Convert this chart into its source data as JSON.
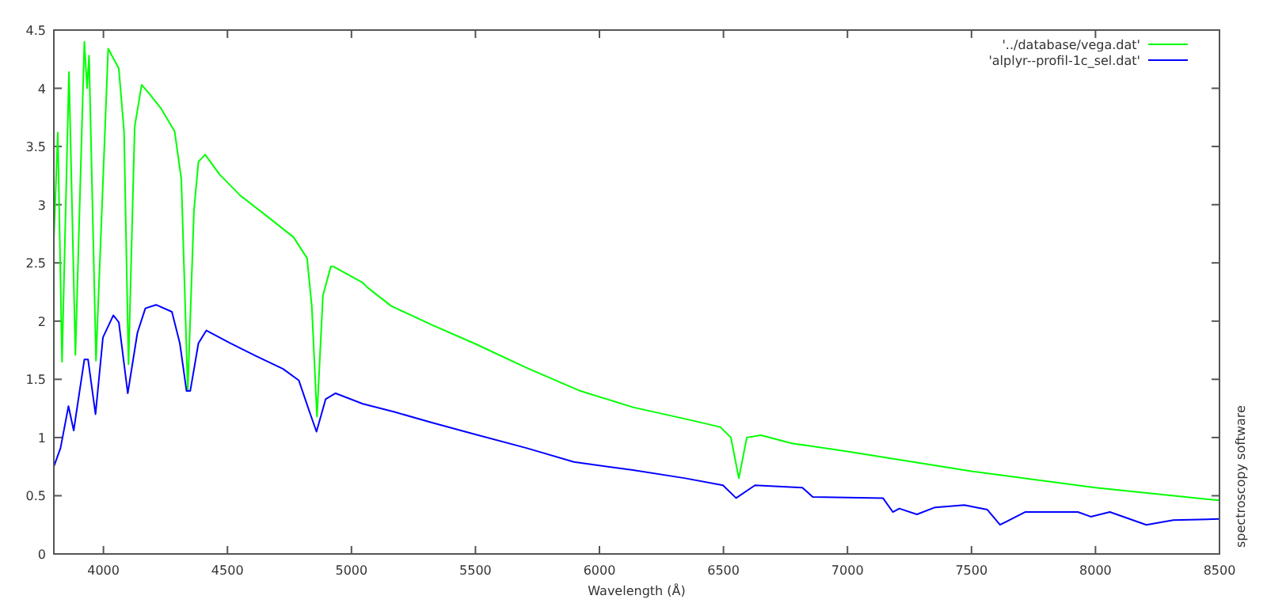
{
  "chart_data": {
    "type": "line",
    "xlabel": "Wavelength (Å)",
    "xlim": [
      3800,
      8500
    ],
    "ylim": [
      0,
      4.5
    ],
    "xticks": [
      4000,
      4500,
      5000,
      5500,
      6000,
      6500,
      7000,
      7500,
      8000,
      8500
    ],
    "yticks": [
      0,
      0.5,
      1,
      1.5,
      2,
      2.5,
      3,
      3.5,
      4,
      4.5
    ],
    "grid": false,
    "legend": "top right",
    "marker": "none",
    "line_style": "solid",
    "annotations": [
      "spectroscopy software"
    ],
    "series": [
      {
        "name": "'../database/vega.dat'",
        "color": "#00ff00",
        "x": [
          3800,
          3816,
          3833,
          3861,
          3887,
          3923,
          3934,
          3942,
          3970,
          4019,
          4062,
          4083,
          4101,
          4126,
          4154,
          4190,
          4231,
          4287,
          4314,
          4340,
          4365,
          4383,
          4410,
          4468,
          4551,
          4660,
          4767,
          4821,
          4840,
          4861,
          4885,
          4917,
          4926,
          5045,
          5064,
          5160,
          5321,
          5494,
          5705,
          5923,
          6135,
          6346,
          6487,
          6530,
          6562,
          6594,
          6651,
          6776,
          7000,
          7500,
          8000,
          8500
        ],
        "values": [
          2.7,
          3.62,
          1.65,
          4.14,
          1.71,
          4.4,
          4.0,
          4.28,
          1.66,
          4.34,
          4.17,
          3.63,
          1.63,
          3.67,
          4.03,
          3.94,
          3.83,
          3.63,
          3.22,
          1.4,
          2.95,
          3.37,
          3.43,
          3.26,
          3.08,
          2.9,
          2.72,
          2.54,
          2.13,
          1.18,
          2.22,
          2.47,
          2.47,
          2.33,
          2.29,
          2.13,
          1.97,
          1.81,
          1.6,
          1.4,
          1.26,
          1.16,
          1.09,
          1.0,
          0.65,
          1.0,
          1.02,
          0.95,
          0.88,
          0.71,
          0.57,
          0.46
        ]
      },
      {
        "name": "'alplyr--profil-1c_sel.dat'",
        "color": "#0000ff",
        "x": [
          3800,
          3827,
          3859,
          3880,
          3923,
          3938,
          3968,
          3998,
          4040,
          4062,
          4098,
          4137,
          4169,
          4212,
          4276,
          4308,
          4335,
          4350,
          4383,
          4415,
          4511,
          4615,
          4724,
          4788,
          4831,
          4859,
          4896,
          4936,
          5045,
          5173,
          5321,
          5494,
          5705,
          5897,
          6135,
          6346,
          6498,
          6551,
          6627,
          6818,
          6860,
          7143,
          7183,
          7209,
          7280,
          7353,
          7471,
          7564,
          7615,
          7716,
          7929,
          7981,
          8058,
          8205,
          8314,
          8500
        ],
        "values": [
          0.75,
          0.91,
          1.27,
          1.06,
          1.67,
          1.67,
          1.2,
          1.86,
          2.05,
          1.99,
          1.38,
          1.9,
          2.11,
          2.14,
          2.08,
          1.81,
          1.4,
          1.4,
          1.81,
          1.92,
          1.81,
          1.7,
          1.59,
          1.49,
          1.22,
          1.05,
          1.33,
          1.38,
          1.29,
          1.22,
          1.13,
          1.03,
          0.91,
          0.79,
          0.72,
          0.65,
          0.59,
          0.48,
          0.59,
          0.57,
          0.49,
          0.48,
          0.36,
          0.39,
          0.34,
          0.4,
          0.42,
          0.38,
          0.25,
          0.36,
          0.36,
          0.32,
          0.36,
          0.25,
          0.29,
          0.3
        ]
      }
    ]
  }
}
